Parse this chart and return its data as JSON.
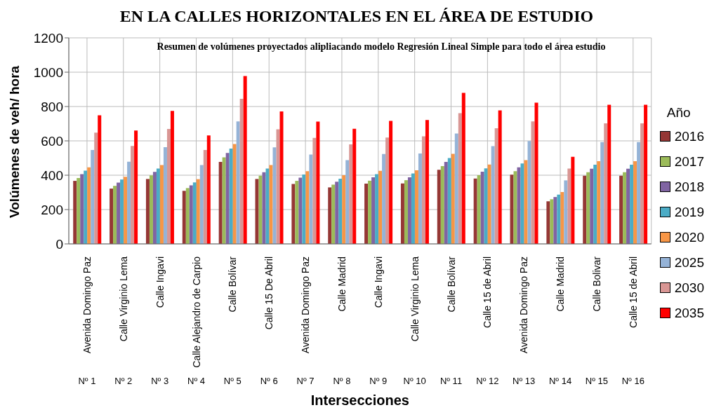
{
  "chart_data": {
    "type": "bar",
    "title": "EN LA CALLES HORIZONTALES EN EL ÁREA DE ESTUDIO",
    "subtitle": "Resumen de volúmenes proyectados alipliacando modelo Regresión Lineal Simple para todo el área estudio",
    "xlabel": "Intersecciones",
    "ylabel": "Volúmenes de veh/ hora",
    "legend_title": "Año",
    "categories": [
      "Avenida Domingo Paz",
      "Calle Virginio Lema",
      "Calle Ingavi",
      "Calle Alejandro de Carpio",
      "Calle Bolívar",
      "Calle 15 De Abril",
      "Avenida Domingo Paz",
      "Calle Madrid",
      "Calle Ingavi",
      "Calle Virginio Lema",
      "Calle Bolívar",
      "Calle 15 de Abril",
      "Avenida Domingo Paz",
      "Calle Madrid",
      "Calle Bolivar",
      "Calle 15 de Abril"
    ],
    "annotations": [
      "Nº 1",
      "Nº 2",
      "Nº 3",
      "Nº 4",
      "Nº 5",
      "Nº 6",
      "Nº 7",
      "Nº 8",
      "Nº 9",
      "Nº 10",
      "Nº 11",
      "Nº 12",
      "Nº 13",
      "Nº 14",
      "Nº 15",
      "Nº 16"
    ],
    "series": [
      {
        "name": "2016",
        "color": "#953735",
        "values": [
          367,
          322,
          378,
          309,
          478,
          378,
          349,
          329,
          351,
          352,
          432,
          381,
          403,
          248,
          397,
          397
        ]
      },
      {
        "name": "2017",
        "color": "#9bbb59",
        "values": [
          384,
          338,
          399,
          325,
          504,
          397,
          367,
          345,
          368,
          371,
          453,
          400,
          423,
          260,
          417,
          417
        ]
      },
      {
        "name": "2018",
        "color": "#8064a2",
        "values": [
          406,
          357,
          419,
          341,
          530,
          417,
          386,
          362,
          388,
          388,
          478,
          420,
          446,
          273,
          438,
          438
        ]
      },
      {
        "name": "2019",
        "color": "#4bacc6",
        "values": [
          427,
          375,
          439,
          358,
          555,
          439,
          404,
          380,
          406,
          410,
          500,
          440,
          468,
          287,
          461,
          461
        ]
      },
      {
        "name": "2020",
        "color": "#f79646",
        "values": [
          446,
          391,
          459,
          377,
          582,
          459,
          423,
          400,
          426,
          429,
          524,
          462,
          488,
          302,
          482,
          482
        ]
      },
      {
        "name": "2025",
        "color": "#95b3d7",
        "values": [
          547,
          479,
          563,
          459,
          713,
          562,
          520,
          488,
          523,
          527,
          643,
          569,
          599,
          370,
          593,
          593
        ]
      },
      {
        "name": "2030",
        "color": "#d99694",
        "values": [
          648,
          570,
          669,
          547,
          845,
          667,
          617,
          580,
          619,
          627,
          761,
          673,
          713,
          439,
          702,
          702
        ]
      },
      {
        "name": "2035",
        "color": "#ff0000",
        "values": [
          749,
          660,
          774,
          632,
          978,
          771,
          712,
          670,
          716,
          721,
          880,
          778,
          822,
          507,
          810,
          810
        ]
      }
    ],
    "ylim": [
      0,
      1200
    ],
    "yticks": [
      0,
      200,
      400,
      600,
      800,
      1000,
      1200
    ],
    "grid": true,
    "legend": "right"
  }
}
